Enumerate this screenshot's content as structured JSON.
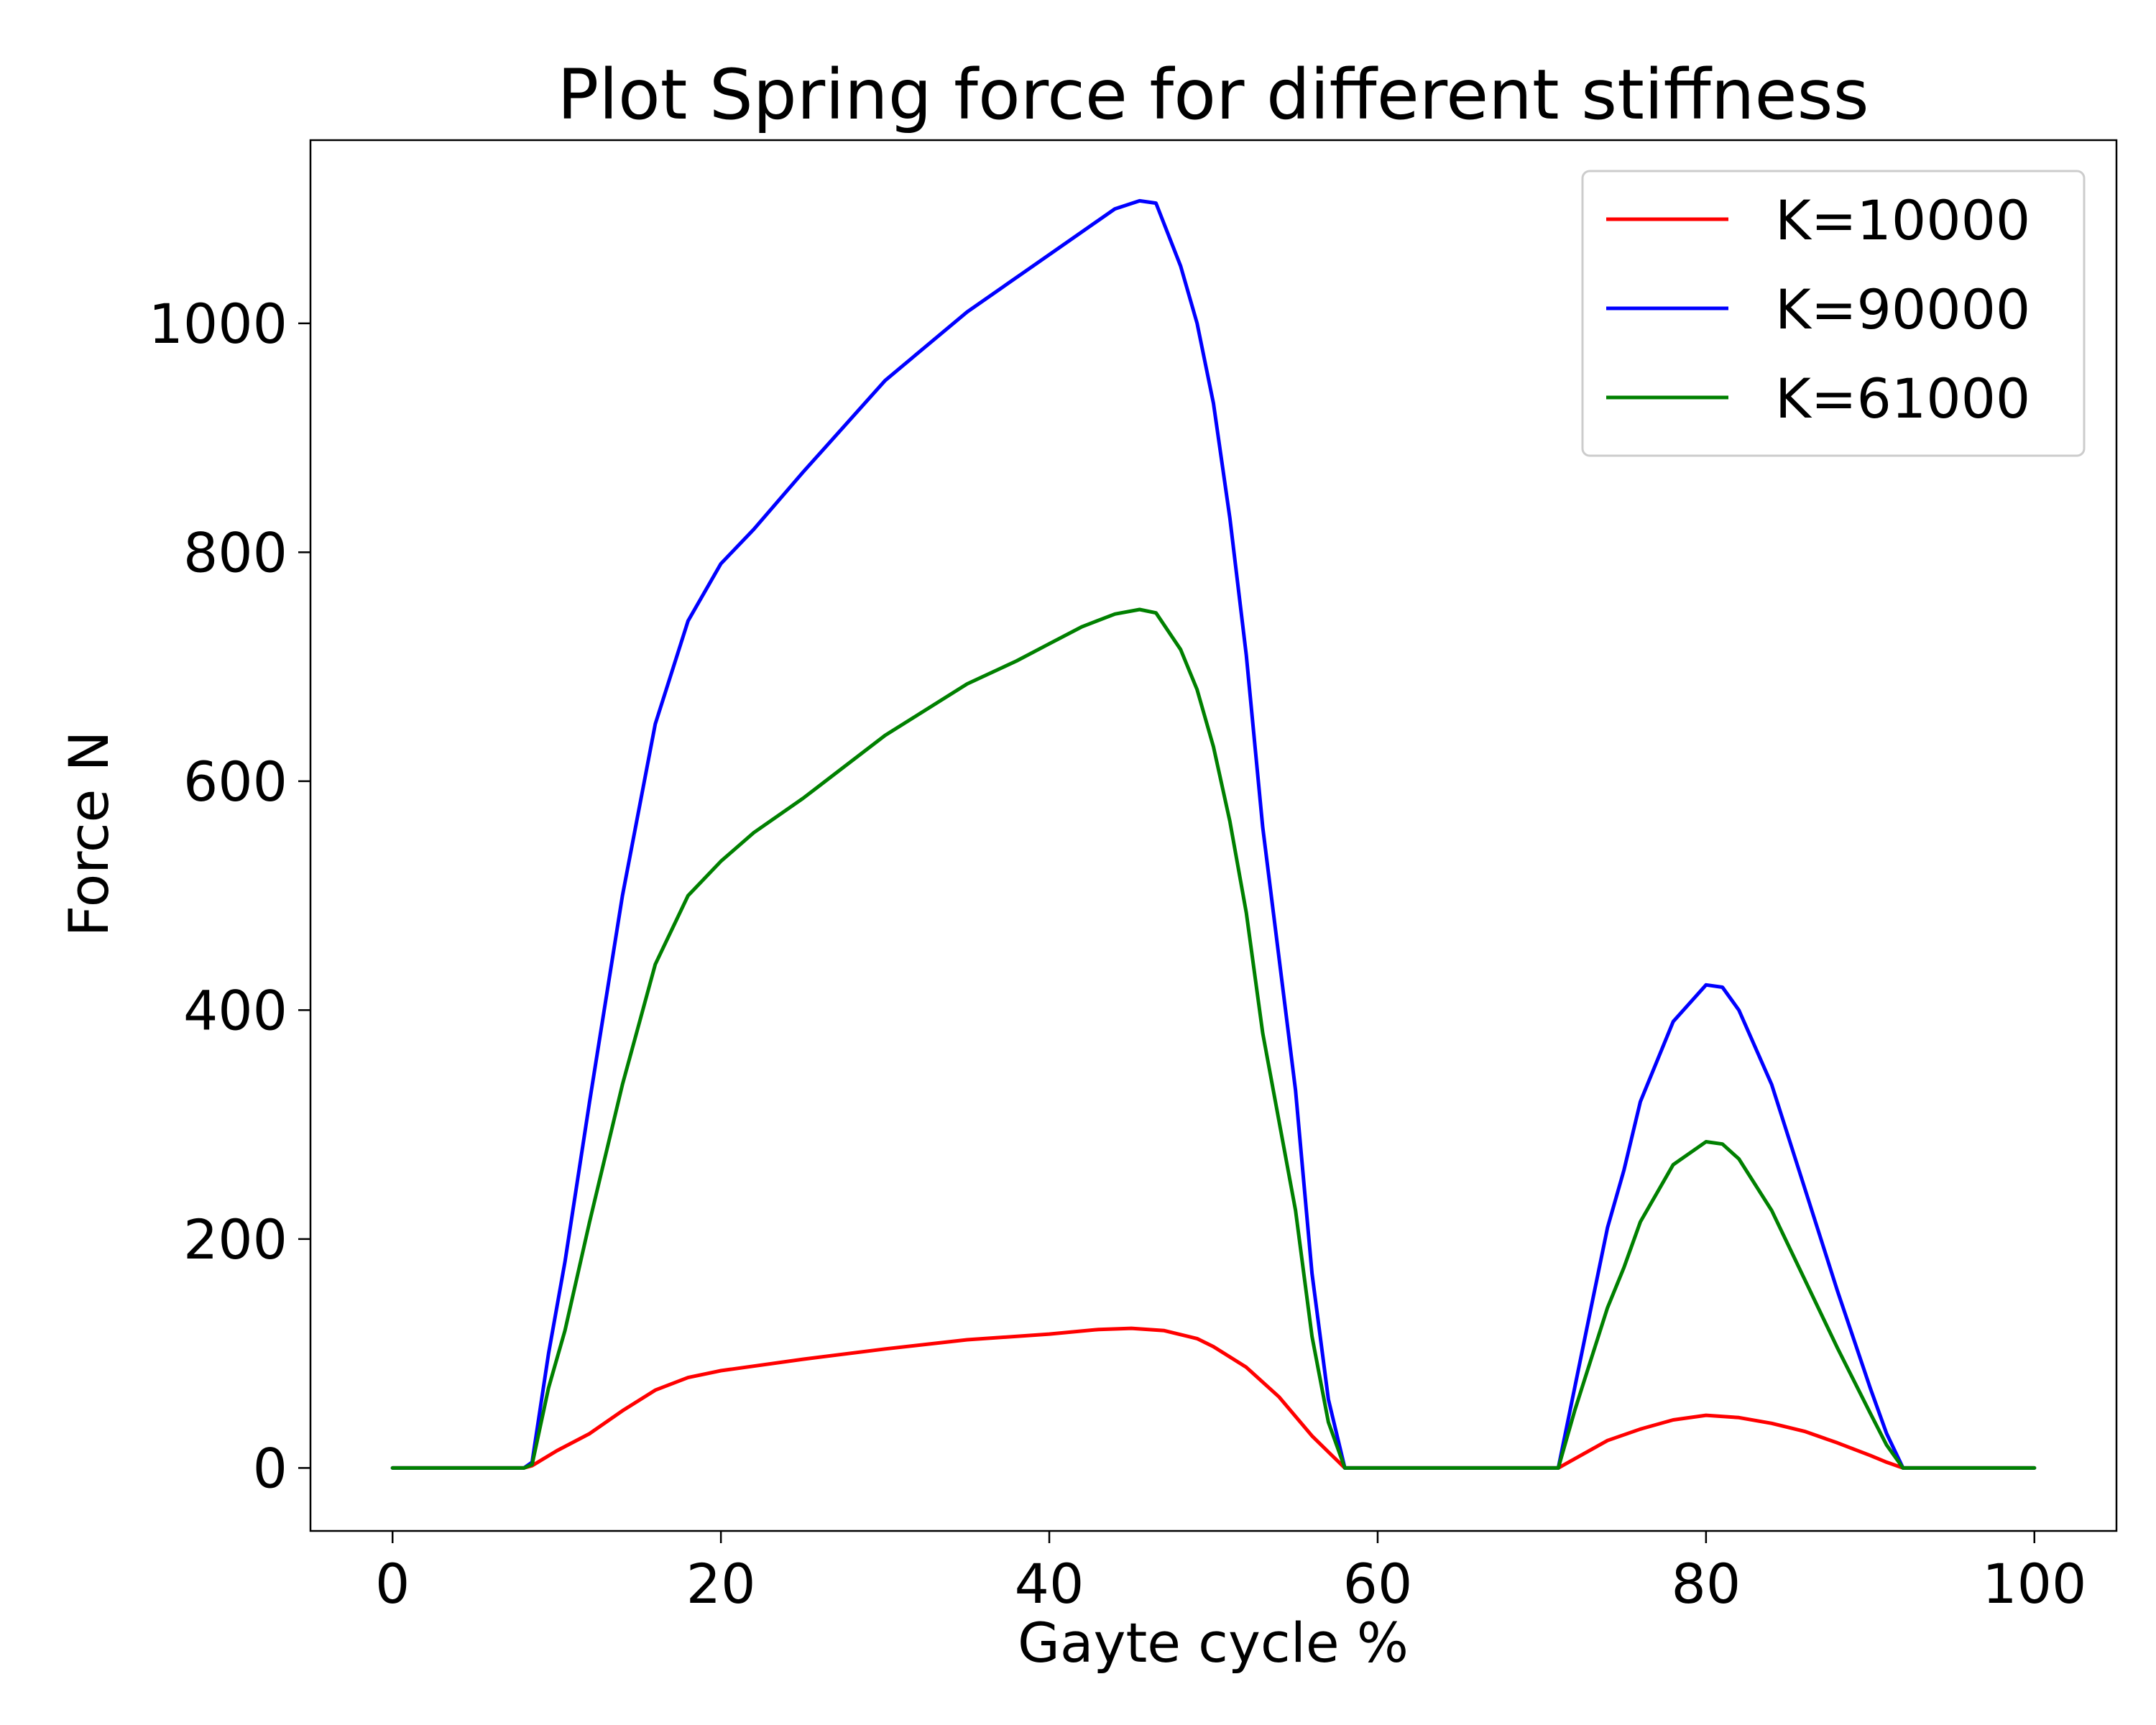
{
  "chart_data": {
    "type": "line",
    "title": "Plot Spring force for different stiffness",
    "xlabel": "Gayte cycle %",
    "ylabel": "Force N",
    "xlim": [
      -5,
      105
    ],
    "ylim": [
      -55,
      1160
    ],
    "xticks": [
      0,
      20,
      40,
      60,
      80,
      100
    ],
    "yticks": [
      0,
      200,
      400,
      600,
      800,
      1000
    ],
    "grid": false,
    "legend_position": "top-right",
    "series": [
      {
        "name": "K=10000",
        "color": "#ff0000",
        "x": [
          0,
          8,
          8.5,
          10,
          12,
          14,
          16,
          18,
          20,
          22,
          25,
          30,
          35,
          40,
          43,
          45,
          47,
          49,
          50,
          52,
          54,
          56,
          57,
          58,
          60,
          65,
          70,
          71,
          72,
          74,
          76,
          78,
          80,
          82,
          84,
          86,
          88,
          90,
          91,
          92,
          95,
          100
        ],
        "y": [
          0,
          0,
          2,
          15,
          30,
          50,
          68,
          79,
          85,
          89,
          95,
          104,
          112,
          117,
          121,
          122,
          120,
          113,
          106,
          88,
          62,
          28,
          14,
          0,
          0,
          0,
          0,
          0,
          8,
          24,
          34,
          42,
          46,
          44,
          39,
          32,
          22,
          11,
          5,
          0,
          0,
          0
        ]
      },
      {
        "name": "K=90000",
        "color": "#0000ff",
        "x": [
          0,
          8,
          8.5,
          9.5,
          10.5,
          12,
          14,
          16,
          18,
          20,
          22,
          25,
          30,
          35,
          38,
          40,
          42,
          44,
          45.5,
          46.5,
          48,
          49,
          50,
          51,
          52,
          53,
          55,
          56,
          57,
          58,
          60,
          65,
          70,
          71,
          72,
          73,
          74,
          75,
          76,
          78,
          80,
          81,
          82,
          84,
          86,
          88,
          90,
          91,
          92,
          95,
          100
        ],
        "y": [
          0,
          0,
          5,
          100,
          180,
          320,
          500,
          650,
          740,
          790,
          820,
          870,
          950,
          1010,
          1040,
          1060,
          1080,
          1100,
          1107,
          1105,
          1050,
          1000,
          930,
          830,
          710,
          560,
          330,
          170,
          60,
          0,
          0,
          0,
          0,
          0,
          70,
          140,
          210,
          260,
          320,
          390,
          422,
          420,
          400,
          335,
          245,
          155,
          70,
          30,
          0,
          0,
          0
        ]
      },
      {
        "name": "K=61000",
        "color": "#008000",
        "x": [
          0,
          8,
          8.5,
          9.5,
          10.5,
          12,
          14,
          16,
          18,
          20,
          22,
          25,
          30,
          35,
          38,
          40,
          42,
          44,
          45.5,
          46.5,
          48,
          49,
          50,
          51,
          52,
          53,
          55,
          56,
          57,
          58,
          60,
          65,
          70,
          71,
          72,
          73,
          74,
          75,
          76,
          78,
          80,
          81,
          82,
          84,
          86,
          88,
          90,
          91,
          92,
          95,
          100
        ],
        "y": [
          0,
          0,
          3,
          70,
          120,
          215,
          335,
          440,
          500,
          530,
          555,
          585,
          640,
          685,
          705,
          720,
          735,
          746,
          750,
          747,
          715,
          680,
          630,
          565,
          485,
          380,
          225,
          115,
          40,
          0,
          0,
          0,
          0,
          0,
          50,
          95,
          140,
          175,
          215,
          265,
          285,
          283,
          270,
          225,
          165,
          105,
          48,
          20,
          0,
          0,
          0
        ]
      }
    ]
  }
}
